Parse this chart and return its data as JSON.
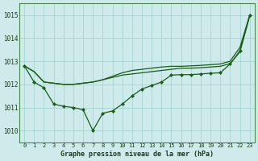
{
  "title": "Graphe pression niveau de la mer (hPa)",
  "bg_color": "#ceeaea",
  "grid_color": "#9fcece",
  "line_color": "#1a5c1a",
  "marker_color": "#1a5c1a",
  "xlim": [
    -0.5,
    23.5
  ],
  "ylim": [
    1009.5,
    1015.5
  ],
  "yticks": [
    1010,
    1011,
    1012,
    1013,
    1014,
    1015
  ],
  "xticks": [
    0,
    1,
    2,
    3,
    4,
    5,
    6,
    7,
    8,
    9,
    10,
    11,
    12,
    13,
    14,
    15,
    16,
    17,
    18,
    19,
    20,
    21,
    22,
    23
  ],
  "series": [
    {
      "y": [
        1012.8,
        1012.55,
        1012.1,
        1012.05,
        1012.0,
        1012.0,
        1012.05,
        1012.1,
        1012.2,
        1012.3,
        1012.4,
        1012.45,
        1012.5,
        1012.55,
        1012.6,
        1012.65,
        1012.7,
        1012.7,
        1012.72,
        1012.75,
        1012.78,
        1012.9,
        1013.4,
        1014.95
      ],
      "has_markers": false
    },
    {
      "y": [
        1012.8,
        1012.55,
        1012.1,
        1012.05,
        1012.0,
        1012.0,
        1012.05,
        1012.1,
        1012.2,
        1012.35,
        1012.5,
        1012.6,
        1012.65,
        1012.7,
        1012.75,
        1012.78,
        1012.78,
        1012.8,
        1012.82,
        1012.85,
        1012.88,
        1013.0,
        1013.6,
        1015.0
      ],
      "has_markers": false
    },
    {
      "y": [
        1012.8,
        1012.1,
        1011.85,
        1011.15,
        1011.05,
        1011.0,
        1010.9,
        1010.0,
        1010.75,
        1010.85,
        1011.15,
        1011.5,
        1011.8,
        1011.95,
        1012.1,
        1012.4,
        1012.42,
        1012.42,
        1012.45,
        1012.48,
        1012.5,
        1012.88,
        1013.45,
        1015.0
      ],
      "has_markers": true
    }
  ]
}
